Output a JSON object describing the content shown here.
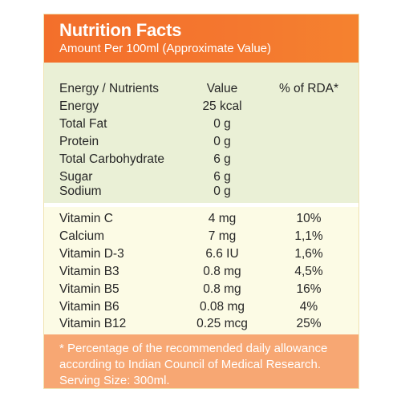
{
  "header": {
    "title": "Nutrition Facts",
    "subtitle": "Amount Per 100ml (Approximate Value)"
  },
  "table1": {
    "columns": [
      "Energy / Nutrients",
      "Value",
      "% of RDA*"
    ],
    "rows": [
      [
        "Energy",
        "25 kcal",
        ""
      ],
      [
        "Total Fat",
        "0 g",
        ""
      ],
      [
        "Protein",
        "0 g",
        ""
      ],
      [
        "Total Carbohydrate",
        "6 g",
        ""
      ],
      [
        "Sugar",
        "6 g",
        ""
      ],
      [
        "Sodium",
        "0 g",
        ""
      ]
    ]
  },
  "table2": {
    "rows": [
      [
        "Vitamin C",
        "4 mg",
        "10%"
      ],
      [
        "Calcium",
        "7 mg",
        "1,1%"
      ],
      [
        "Vitamin D-3",
        "6.6 IU",
        "1,6%"
      ],
      [
        "Vitamin B3",
        "0.8 mg",
        "4,5%"
      ],
      [
        "Vitamin B5",
        "0.8 mg",
        "16%"
      ],
      [
        "Vitamin B6",
        "0.08 mg",
        "4%"
      ],
      [
        "Vitamin B12",
        "0.25 mcg",
        "25%"
      ]
    ]
  },
  "footer": {
    "line1": "* Percentage of the recommended daily allowance",
    "line2": "according to Indian Council of Medical Research.",
    "line3": "Serving Size: 300ml."
  },
  "colors": {
    "header": "#f36f2b",
    "section1": "#eaf0d6",
    "section2": "#fcfbe5",
    "footer": "#f7a773"
  }
}
